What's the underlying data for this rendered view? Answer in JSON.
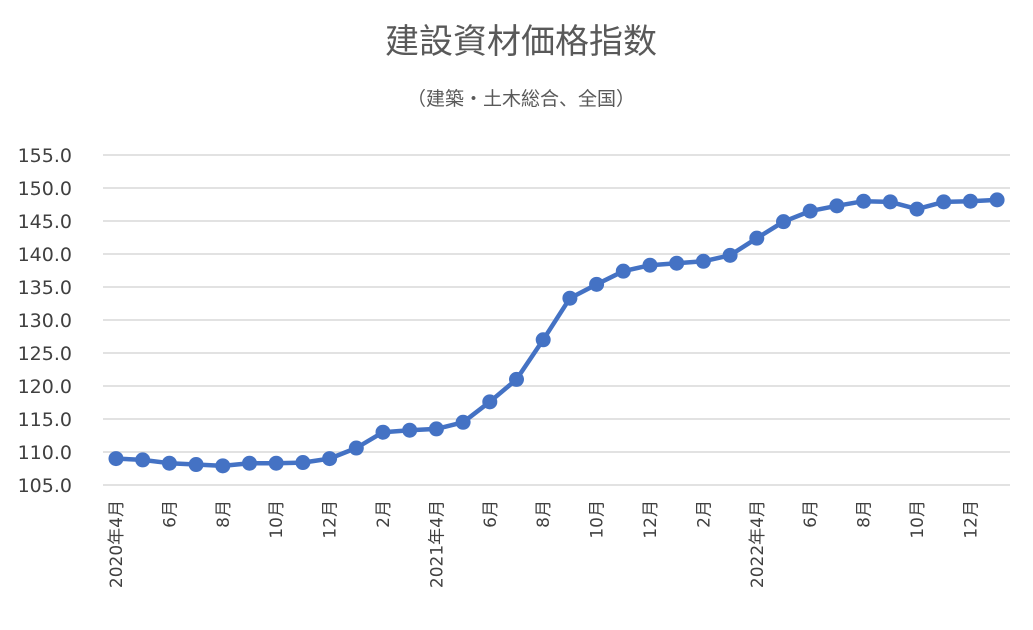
{
  "chart_data": {
    "type": "line",
    "title": "建設資材価格指数",
    "subtitle": "（建築・土木総合、全国）",
    "ylim": [
      105,
      155
    ],
    "yticks": [
      "105.0",
      "110.0",
      "115.0",
      "120.0",
      "125.0",
      "130.0",
      "135.0",
      "140.0",
      "145.0",
      "150.0",
      "155.0"
    ],
    "grid": true,
    "legend": "none",
    "x": [
      "2020年4月",
      "5月",
      "6月",
      "7月",
      "8月",
      "9月",
      "10月",
      "11月",
      "12月",
      "1月",
      "2月",
      "3月",
      "2021年4月",
      "5月",
      "6月",
      "7月",
      "8月",
      "9月",
      "10月",
      "11月",
      "12月",
      "1月",
      "2月",
      "3月",
      "2022年4月",
      "5月",
      "6月",
      "7月",
      "8月",
      "9月",
      "10月",
      "11月",
      "12月",
      "1月"
    ],
    "xtick_labels": [
      "2020年4月",
      "",
      "6月",
      "",
      "8月",
      "",
      "10月",
      "",
      "12月",
      "",
      "2月",
      "",
      "2021年4月",
      "",
      "6月",
      "",
      "8月",
      "",
      "10月",
      "",
      "12月",
      "",
      "2月",
      "",
      "2022年4月",
      "",
      "6月",
      "",
      "8月",
      "",
      "10月",
      "",
      "12月",
      ""
    ],
    "series": [
      {
        "color": "#4472c4",
        "values": [
          109.0,
          108.8,
          108.3,
          108.1,
          107.9,
          108.3,
          108.3,
          108.4,
          109.0,
          110.6,
          113.0,
          113.3,
          113.5,
          114.5,
          117.6,
          121.0,
          127.0,
          133.3,
          135.4,
          137.4,
          138.3,
          138.6,
          138.9,
          139.8,
          142.4,
          144.9,
          146.5,
          147.3,
          148.0,
          147.9,
          146.8,
          147.9,
          148.0,
          148.2
        ]
      }
    ]
  }
}
